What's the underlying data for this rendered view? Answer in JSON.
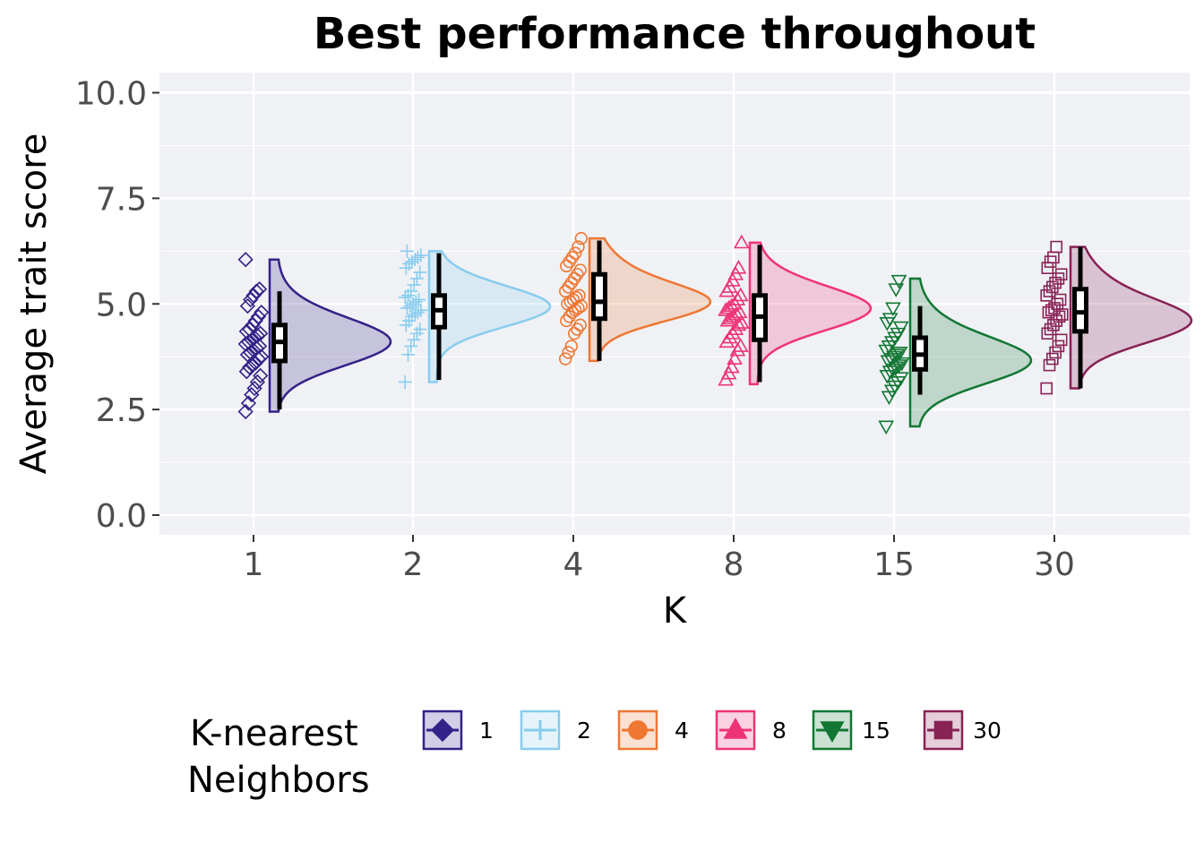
{
  "chart_data": {
    "type": "raincloud",
    "title": "Best performance throughout",
    "xlabel": "K",
    "ylabel": "Average trait score",
    "ylim": [
      -0.45,
      10.5
    ],
    "yticks": [
      "0.0",
      "2.5",
      "5.0",
      "7.5",
      "10.0"
    ],
    "ytick_values": [
      0,
      2.5,
      5,
      7.5,
      10
    ],
    "grid": true,
    "categories": [
      "1",
      "2",
      "4",
      "8",
      "15",
      "30"
    ],
    "series": [
      {
        "name": "1",
        "color": "#332288",
        "marker": "diamond",
        "min": 2.45,
        "max": 6.05,
        "q1": 3.65,
        "median": 4.1,
        "q3": 4.5,
        "whisker_low": 2.5,
        "whisker_high": 5.3,
        "peak": 4.05,
        "points": [
          2.45,
          2.65,
          2.85,
          3.0,
          3.15,
          3.3,
          3.4,
          3.5,
          3.55,
          3.6,
          3.7,
          3.75,
          3.8,
          3.85,
          3.9,
          3.95,
          4.0,
          4.05,
          4.1,
          4.15,
          4.2,
          4.25,
          4.3,
          4.35,
          4.4,
          4.5,
          4.6,
          4.7,
          4.8,
          4.95,
          5.1,
          5.2,
          5.3,
          5.35,
          6.05
        ]
      },
      {
        "name": "2",
        "color": "#88CCEE",
        "marker": "plus",
        "min": 3.15,
        "max": 6.25,
        "q1": 4.45,
        "median": 4.85,
        "q3": 5.2,
        "whisker_low": 3.2,
        "whisker_high": 6.2,
        "peak": 4.9,
        "points": [
          3.15,
          3.8,
          4.0,
          4.15,
          4.3,
          4.4,
          4.5,
          4.6,
          4.7,
          4.75,
          4.8,
          4.85,
          4.9,
          4.95,
          5.0,
          5.05,
          5.1,
          5.15,
          5.2,
          5.3,
          5.45,
          5.6,
          5.75,
          5.85,
          5.95,
          6.0,
          6.05,
          6.1,
          6.15,
          6.25
        ]
      },
      {
        "name": "4",
        "color": "#EE7733",
        "marker": "circle",
        "min": 3.65,
        "max": 6.55,
        "q1": 4.65,
        "median": 5.05,
        "q3": 5.7,
        "whisker_low": 3.65,
        "whisker_high": 6.5,
        "peak": 5.0,
        "points": [
          3.7,
          3.85,
          4.0,
          4.3,
          4.4,
          4.5,
          4.6,
          4.7,
          4.8,
          4.85,
          4.9,
          4.95,
          5.0,
          5.05,
          5.1,
          5.15,
          5.2,
          5.3,
          5.4,
          5.5,
          5.6,
          5.7,
          5.8,
          5.9,
          6.0,
          6.1,
          6.2,
          6.35,
          6.55
        ]
      },
      {
        "name": "8",
        "color": "#EE3377",
        "marker": "triangle",
        "min": 3.1,
        "max": 6.45,
        "q1": 4.15,
        "median": 4.7,
        "q3": 5.2,
        "whisker_low": 3.15,
        "whisker_high": 6.4,
        "peak": 4.85,
        "points": [
          3.2,
          3.35,
          3.5,
          3.7,
          3.9,
          4.0,
          4.1,
          4.2,
          4.3,
          4.4,
          4.5,
          4.55,
          4.6,
          4.65,
          4.7,
          4.75,
          4.8,
          4.85,
          4.9,
          4.95,
          5.0,
          5.1,
          5.2,
          5.3,
          5.4,
          5.55,
          5.7,
          5.85,
          6.45
        ]
      },
      {
        "name": "15",
        "color": "#117733",
        "marker": "triangle-down",
        "min": 2.1,
        "max": 5.6,
        "q1": 3.45,
        "median": 3.8,
        "q3": 4.2,
        "whisker_low": 2.85,
        "whisker_high": 4.95,
        "peak": 3.6,
        "points": [
          2.1,
          2.8,
          2.95,
          3.05,
          3.15,
          3.25,
          3.3,
          3.4,
          3.45,
          3.5,
          3.55,
          3.6,
          3.65,
          3.7,
          3.75,
          3.8,
          3.85,
          3.9,
          4.0,
          4.1,
          4.2,
          4.3,
          4.45,
          4.55,
          4.65,
          4.9,
          5.35,
          5.55
        ]
      },
      {
        "name": "30",
        "color": "#882255",
        "marker": "square",
        "min": 3.0,
        "max": 6.35,
        "q1": 4.35,
        "median": 4.8,
        "q3": 5.35,
        "whisker_low": 3.0,
        "whisker_high": 6.35,
        "peak": 4.55,
        "points": [
          3.0,
          3.55,
          3.7,
          3.85,
          4.0,
          4.15,
          4.3,
          4.4,
          4.5,
          4.6,
          4.7,
          4.75,
          4.8,
          4.85,
          4.9,
          5.0,
          5.1,
          5.2,
          5.3,
          5.4,
          5.5,
          5.6,
          5.7,
          5.85,
          6.0,
          6.1,
          6.35
        ]
      }
    ],
    "legend": {
      "title_lines": [
        "K-nearest",
        "Neighbors"
      ],
      "position": "bottom"
    }
  }
}
